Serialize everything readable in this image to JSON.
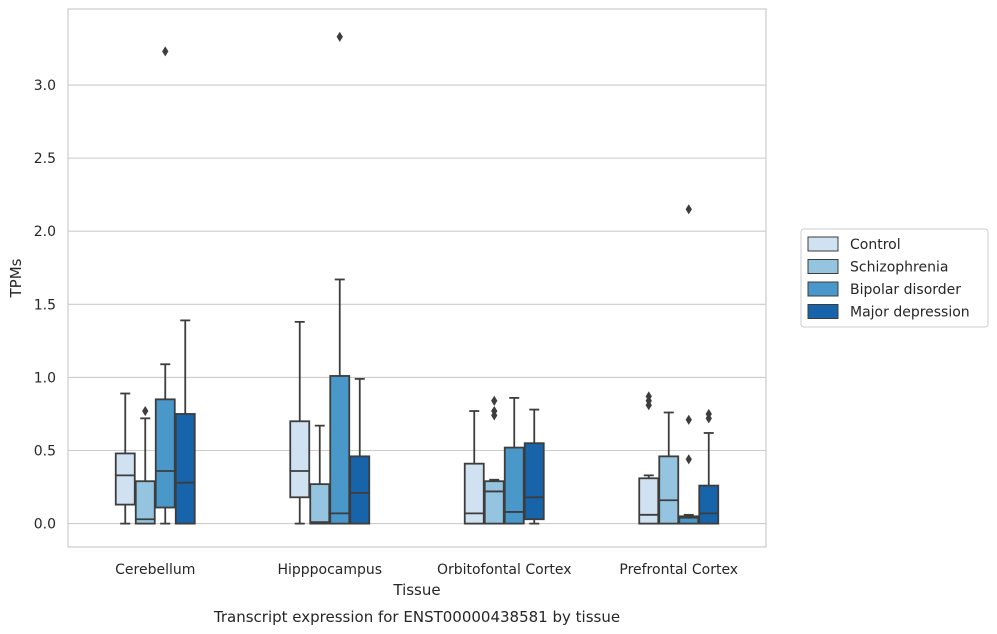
{
  "caption": "Transcript expression for ENST00000438581 by tissue",
  "chart_data": {
    "type": "box",
    "xlabel": "Tissue",
    "ylabel": "TPMs",
    "ylim": [
      -0.16,
      3.52
    ],
    "yticks": [
      "0.0",
      "0.5",
      "1.0",
      "1.5",
      "2.0",
      "2.5",
      "3.0"
    ],
    "grid": true,
    "legend_position": "right",
    "categories": [
      "Cerebellum",
      "Hipppocampus",
      "Orbitofontal Cortex",
      "Prefrontal Cortex"
    ],
    "series": [
      {
        "name": "Control",
        "color": "#d0e1f2",
        "boxes": [
          {
            "whislo": 0.0,
            "q1": 0.13,
            "med": 0.33,
            "q3": 0.48,
            "whishi": 0.89,
            "fliers": []
          },
          {
            "whislo": 0.0,
            "q1": 0.18,
            "med": 0.36,
            "q3": 0.7,
            "whishi": 1.38,
            "fliers": []
          },
          {
            "whislo": 0.0,
            "q1": 0.0,
            "med": 0.07,
            "q3": 0.41,
            "whishi": 0.77,
            "fliers": []
          },
          {
            "whislo": 0.0,
            "q1": 0.0,
            "med": 0.06,
            "q3": 0.31,
            "whishi": 0.33,
            "fliers": [
              0.81,
              0.84,
              0.87
            ]
          }
        ]
      },
      {
        "name": "Schizophrenia",
        "color": "#94c4df",
        "boxes": [
          {
            "whislo": 0.0,
            "q1": 0.0,
            "med": 0.03,
            "q3": 0.29,
            "whishi": 0.72,
            "fliers": [
              0.77
            ]
          },
          {
            "whislo": 0.0,
            "q1": 0.0,
            "med": 0.01,
            "q3": 0.27,
            "whishi": 0.67,
            "fliers": []
          },
          {
            "whislo": 0.0,
            "q1": 0.0,
            "med": 0.22,
            "q3": 0.29,
            "whishi": 0.3,
            "fliers": [
              0.74,
              0.77,
              0.84
            ]
          },
          {
            "whislo": 0.0,
            "q1": 0.0,
            "med": 0.16,
            "q3": 0.46,
            "whishi": 0.76,
            "fliers": []
          }
        ]
      },
      {
        "name": "Bipolar disorder",
        "color": "#4a98c9",
        "boxes": [
          {
            "whislo": 0.0,
            "q1": 0.11,
            "med": 0.36,
            "q3": 0.85,
            "whishi": 1.09,
            "fliers": [
              3.23
            ]
          },
          {
            "whislo": 0.0,
            "q1": 0.0,
            "med": 0.07,
            "q3": 1.01,
            "whishi": 1.67,
            "fliers": [
              3.33
            ]
          },
          {
            "whislo": 0.0,
            "q1": 0.0,
            "med": 0.08,
            "q3": 0.52,
            "whishi": 0.86,
            "fliers": []
          },
          {
            "whislo": 0.0,
            "q1": 0.0,
            "med": 0.04,
            "q3": 0.05,
            "whishi": 0.06,
            "fliers": [
              0.44,
              0.71,
              2.15
            ]
          }
        ]
      },
      {
        "name": "Major depression",
        "color": "#1764ab",
        "boxes": [
          {
            "whislo": 0.0,
            "q1": 0.0,
            "med": 0.28,
            "q3": 0.75,
            "whishi": 1.39,
            "fliers": []
          },
          {
            "whislo": 0.0,
            "q1": 0.0,
            "med": 0.21,
            "q3": 0.46,
            "whishi": 0.99,
            "fliers": []
          },
          {
            "whislo": 0.0,
            "q1": 0.03,
            "med": 0.18,
            "q3": 0.55,
            "whishi": 0.78,
            "fliers": []
          },
          {
            "whislo": 0.0,
            "q1": 0.0,
            "med": 0.07,
            "q3": 0.26,
            "whishi": 0.62,
            "fliers": [
              0.72,
              0.75
            ]
          }
        ]
      }
    ]
  }
}
